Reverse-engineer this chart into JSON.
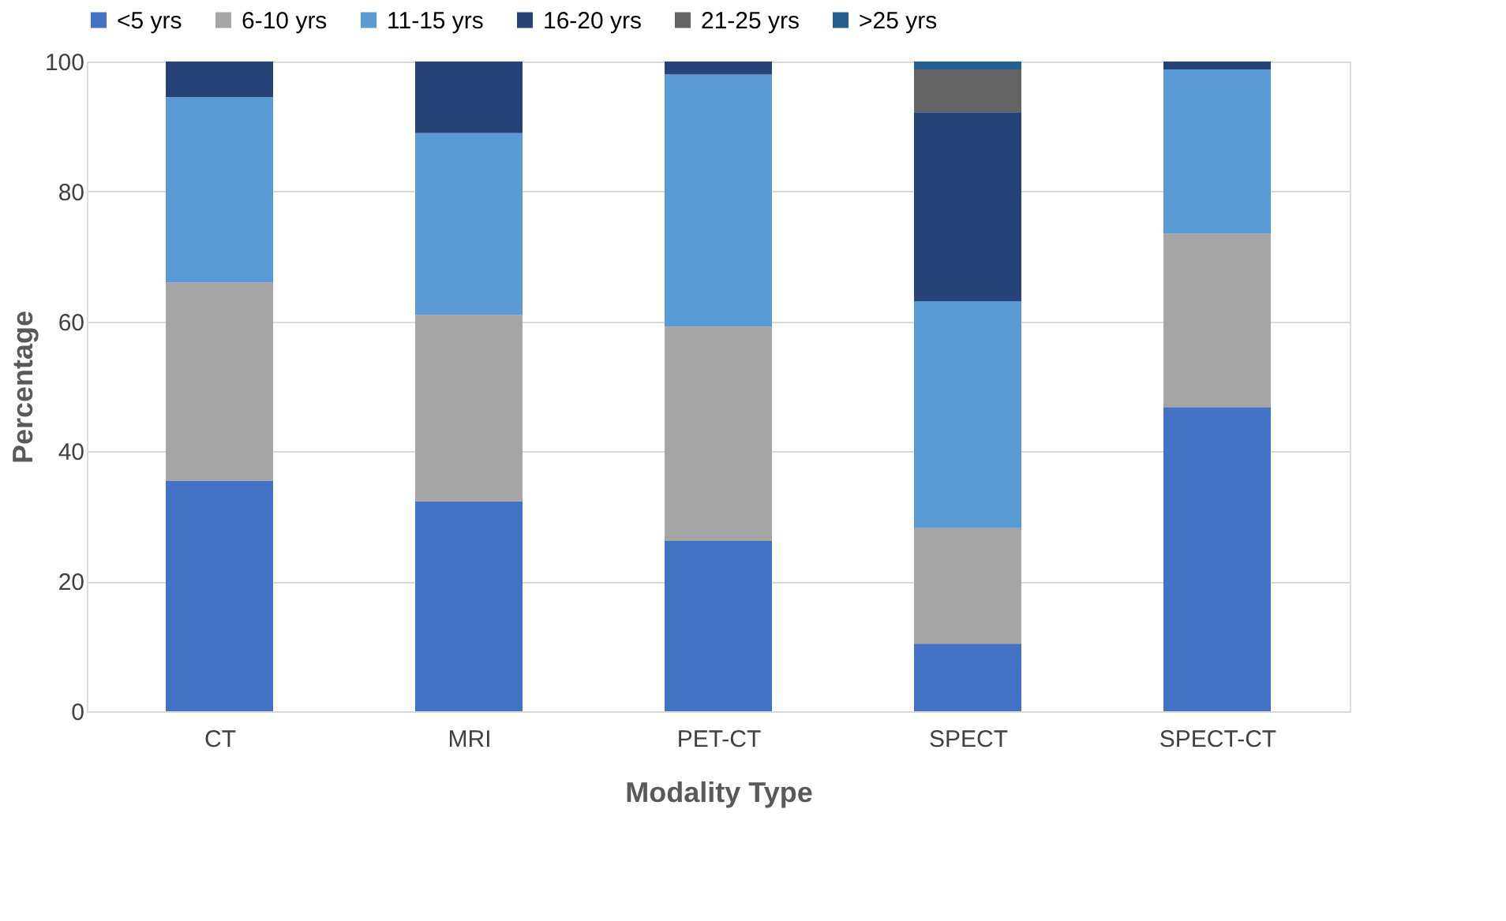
{
  "chart_data": {
    "type": "bar",
    "stacked": true,
    "xlabel": "Modality Type",
    "ylabel": "Percentage",
    "categories": [
      "CT",
      "MRI",
      "PET-CT",
      "SPECT",
      "SPECT-CT"
    ],
    "series": [
      {
        "name": "<5 yrs",
        "color": "#4472c4",
        "values": [
          35.5,
          32.3,
          26.2,
          10.4,
          46.8
        ]
      },
      {
        "name": "6-10 yrs",
        "color": "#a5a5a5",
        "values": [
          30.5,
          28.7,
          33,
          17.8,
          26.7
        ]
      },
      {
        "name": "11-15 yrs",
        "color": "#5b9bd5",
        "values": [
          28.5,
          28,
          38.8,
          34.9,
          25.3
        ]
      },
      {
        "name": "16-20 yrs",
        "color": "#264478",
        "values": [
          5.5,
          11,
          2,
          29.1,
          1.2
        ]
      },
      {
        "name": "21-25 yrs",
        "color": "#636363",
        "values": [
          null,
          null,
          null,
          6.6,
          null
        ]
      },
      {
        "name": ">25 yrs",
        "color": "#255e91",
        "values": [
          null,
          null,
          null,
          1.2,
          null
        ]
      }
    ],
    "ylim": [
      0,
      100
    ],
    "yticks": [
      0,
      20,
      40,
      60,
      80,
      100
    ],
    "grid": "y",
    "legend": "top"
  }
}
